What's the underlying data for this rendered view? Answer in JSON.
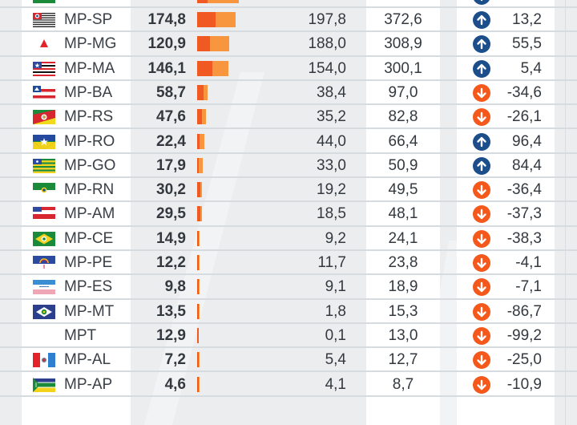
{
  "colors": {
    "bar_dark": "#f05a22",
    "bar_light": "#f7963e",
    "up": "#1b4e8a",
    "down": "#f4581b"
  },
  "partial_top_row": {
    "bar_a": 300.0,
    "bar_b": 246.0,
    "direction": "up"
  },
  "rows": [
    {
      "name": "MP-SP",
      "flag": "flag-sp",
      "v1": "174,8",
      "a": 174.8,
      "v2": "197,8",
      "b": 197.8,
      "total": "372,6",
      "dir": "up",
      "change": "13,2"
    },
    {
      "name": "MP-MG",
      "flag": "flag-mg",
      "v1": "120,9",
      "a": 120.9,
      "v2": "188,0",
      "b": 188.0,
      "total": "308,9",
      "dir": "up",
      "change": "55,5"
    },
    {
      "name": "MP-MA",
      "flag": "flag-ma",
      "v1": "146,1",
      "a": 146.1,
      "v2": "154,0",
      "b": 154.0,
      "total": "300,1",
      "dir": "up",
      "change": "5,4"
    },
    {
      "name": "MP-BA",
      "flag": "flag-ba",
      "v1": "58,7",
      "a": 58.7,
      "v2": "38,4",
      "b": 38.4,
      "total": "97,0",
      "dir": "down",
      "change": "-34,6"
    },
    {
      "name": "MP-RS",
      "flag": "flag-rs",
      "v1": "47,6",
      "a": 47.6,
      "v2": "35,2",
      "b": 35.2,
      "total": "82,8",
      "dir": "down",
      "change": "-26,1"
    },
    {
      "name": "MP-RO",
      "flag": "flag-ro",
      "v1": "22,4",
      "a": 22.4,
      "v2": "44,0",
      "b": 44.0,
      "total": "66,4",
      "dir": "up",
      "change": "96,4"
    },
    {
      "name": "MP-GO",
      "flag": "flag-go",
      "v1": "17,9",
      "a": 17.9,
      "v2": "33,0",
      "b": 33.0,
      "total": "50,9",
      "dir": "up",
      "change": "84,4"
    },
    {
      "name": "MP-RN",
      "flag": "flag-rn",
      "v1": "30,2",
      "a": 30.2,
      "v2": "19,2",
      "b": 19.2,
      "total": "49,5",
      "dir": "down",
      "change": "-36,4"
    },
    {
      "name": "MP-AM",
      "flag": "flag-am",
      "v1": "29,5",
      "a": 29.5,
      "v2": "18,5",
      "b": 18.5,
      "total": "48,1",
      "dir": "down",
      "change": "-37,3"
    },
    {
      "name": "MP-CE",
      "flag": "flag-ce",
      "v1": "14,9",
      "a": 14.9,
      "v2": "9,2",
      "b": 9.2,
      "total": "24,1",
      "dir": "down",
      "change": "-38,3"
    },
    {
      "name": "MP-PE",
      "flag": "flag-pe",
      "v1": "12,2",
      "a": 12.2,
      "v2": "11,7",
      "b": 11.7,
      "total": "23,8",
      "dir": "down",
      "change": "-4,1"
    },
    {
      "name": "MP-ES",
      "flag": "flag-es",
      "v1": "9,8",
      "a": 9.8,
      "v2": "9,1",
      "b": 9.1,
      "total": "18,9",
      "dir": "down",
      "change": "-7,1"
    },
    {
      "name": "MP-MT",
      "flag": "flag-mt",
      "v1": "13,5",
      "a": 13.5,
      "v2": "1,8",
      "b": 1.8,
      "total": "15,3",
      "dir": "down",
      "change": "-86,7"
    },
    {
      "name": "MPT",
      "flag": "",
      "v1": "12,9",
      "a": 12.9,
      "v2": "0,1",
      "b": 0.1,
      "total": "13,0",
      "dir": "down",
      "change": "-99,2"
    },
    {
      "name": "MP-AL",
      "flag": "flag-al",
      "v1": "7,2",
      "a": 7.2,
      "v2": "5,4",
      "b": 5.4,
      "total": "12,7",
      "dir": "down",
      "change": "-25,0"
    },
    {
      "name": "MP-AP",
      "flag": "flag-ap",
      "v1": "4,6",
      "a": 4.6,
      "v2": "4,1",
      "b": 4.1,
      "total": "8,7",
      "dir": "down",
      "change": "-10,9"
    }
  ]
}
